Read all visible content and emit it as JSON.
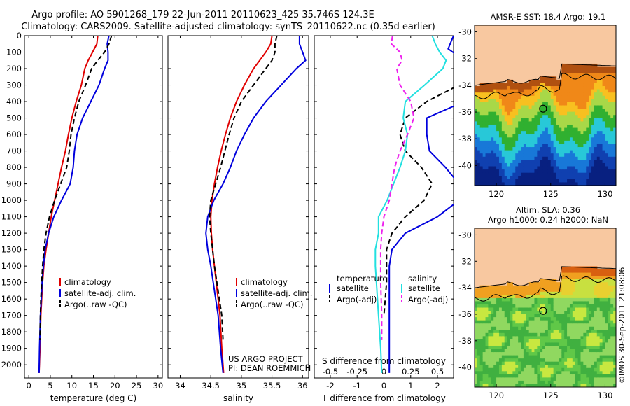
{
  "header": {
    "title_line1": "Argo profile: AO 5901268_179 22-Jun-2011 20110623_425 35.746S 124.3E",
    "title_line2": "Climatology: CARS2009. Satellite-adjusted climatology: synTS_20110622.nc (0.35d earlier)"
  },
  "colors": {
    "climatology": "#e00000",
    "satellite": "#0000dd",
    "argo": "#000000",
    "satellite_s": "#22e0e0",
    "argo_s": "#ee22ee",
    "land": "#f8c8a0"
  },
  "chart_data": [
    {
      "type": "line",
      "panel": "temperature",
      "xlabel": "temperature (deg C)",
      "ylabel": "",
      "xlim": [
        -1,
        31
      ],
      "ylim": [
        2080,
        0
      ],
      "y_reversed": true,
      "xticks": [
        0,
        5,
        10,
        15,
        20,
        25,
        30
      ],
      "yticks": [
        0,
        100,
        200,
        300,
        400,
        500,
        600,
        700,
        800,
        900,
        1000,
        1100,
        1200,
        1300,
        1400,
        1500,
        1600,
        1700,
        1800,
        1900,
        2000
      ],
      "legend": [
        "climatology",
        "satellite-adj. clim.",
        "Argo(..raw -QC)"
      ],
      "series": [
        {
          "name": "climatology",
          "style": "solid",
          "color_key": "climatology",
          "x": [
            16.0,
            15.8,
            14.8,
            13.8,
            13.0,
            12.2,
            11.0,
            10.0,
            9.2,
            8.5,
            7.6,
            6.8,
            6.0,
            5.2,
            4.6,
            4.0,
            3.5,
            3.2,
            3.0,
            2.8,
            2.6,
            2.4
          ],
          "y": [
            0,
            50,
            100,
            150,
            200,
            300,
            400,
            500,
            600,
            700,
            800,
            900,
            1000,
            1100,
            1200,
            1300,
            1400,
            1500,
            1600,
            1700,
            1900,
            2050
          ]
        },
        {
          "name": "satellite-adj. clim.",
          "style": "solid",
          "color_key": "satellite",
          "x": [
            18.6,
            18.2,
            18.4,
            18.4,
            17.6,
            16.3,
            14.4,
            12.5,
            11.2,
            10.6,
            10.3,
            9.6,
            7.6,
            5.8,
            4.6,
            3.8,
            3.4,
            3.1,
            2.9,
            2.7,
            2.5,
            2.4
          ],
          "y": [
            0,
            50,
            100,
            150,
            200,
            300,
            400,
            500,
            600,
            700,
            800,
            900,
            1000,
            1100,
            1200,
            1300,
            1400,
            1500,
            1600,
            1700,
            1900,
            2050
          ]
        },
        {
          "name": "Argo(..raw -QC)",
          "style": "dashed",
          "color_key": "argo",
          "x": [
            19.2,
            18.6,
            17.6,
            16.0,
            14.6,
            13.2,
            11.6,
            10.6,
            9.8,
            9.4,
            8.8,
            7.4,
            6.0,
            4.8,
            4.0,
            3.5,
            3.2,
            3.0,
            2.8,
            2.7,
            2.6
          ],
          "y": [
            0,
            50,
            100,
            150,
            200,
            300,
            400,
            500,
            600,
            700,
            800,
            900,
            1000,
            1100,
            1200,
            1300,
            1400,
            1500,
            1600,
            1700,
            1850
          ]
        }
      ]
    },
    {
      "type": "line",
      "panel": "salinity",
      "xlabel": "salinity",
      "ylabel": "",
      "xlim": [
        33.8,
        36.1
      ],
      "ylim": [
        2080,
        0
      ],
      "y_reversed": true,
      "xticks": [
        34,
        34.5,
        35,
        35.5,
        36
      ],
      "legend": [
        "climatology",
        "satellite-adj. clim.",
        "Argo(..raw -QC)"
      ],
      "series": [
        {
          "name": "climatology",
          "style": "solid",
          "color_key": "climatology",
          "x": [
            35.5,
            35.48,
            35.4,
            35.3,
            35.2,
            35.05,
            34.92,
            34.82,
            34.74,
            34.67,
            34.61,
            34.56,
            34.52,
            34.5,
            34.51,
            34.53,
            34.56,
            34.59,
            34.62,
            34.65,
            34.68,
            34.71
          ],
          "y": [
            0,
            50,
            100,
            150,
            200,
            300,
            400,
            500,
            600,
            700,
            800,
            900,
            1000,
            1100,
            1200,
            1300,
            1400,
            1500,
            1600,
            1700,
            1900,
            2050
          ]
        },
        {
          "name": "satellite-adj. clim.",
          "style": "solid",
          "color_key": "satellite",
          "x": [
            35.95,
            35.95,
            36.0,
            36.05,
            35.9,
            35.65,
            35.4,
            35.2,
            35.05,
            34.92,
            34.82,
            34.7,
            34.55,
            34.45,
            34.42,
            34.45,
            34.5,
            34.54,
            34.58,
            34.62,
            34.66,
            34.7
          ],
          "y": [
            0,
            50,
            100,
            150,
            200,
            300,
            400,
            500,
            600,
            700,
            800,
            900,
            1000,
            1100,
            1200,
            1300,
            1400,
            1500,
            1600,
            1700,
            1900,
            2050
          ]
        },
        {
          "name": "Argo(..raw -QC)",
          "style": "dashed",
          "color_key": "argo",
          "x": [
            35.58,
            35.55,
            35.55,
            35.5,
            35.4,
            35.2,
            35.0,
            34.88,
            34.8,
            34.73,
            34.66,
            34.58,
            34.5,
            34.48,
            34.5,
            34.53,
            34.56,
            34.6,
            34.64,
            34.68,
            34.7
          ],
          "y": [
            0,
            50,
            100,
            150,
            200,
            300,
            400,
            500,
            600,
            700,
            800,
            900,
            1000,
            1100,
            1200,
            1300,
            1400,
            1500,
            1600,
            1700,
            1850
          ]
        }
      ]
    },
    {
      "type": "line",
      "panel": "difference",
      "xlabel": "T difference from climatology",
      "xlabel_top": "S difference from climatology",
      "xlim": [
        -2.6,
        2.6
      ],
      "ylim": [
        2080,
        0
      ],
      "y_reversed": true,
      "xticks": [
        -2,
        -1,
        0,
        1,
        2
      ],
      "xticks_s": [
        -0.5,
        -0.25,
        0,
        0.25,
        0.5
      ],
      "legend_titles": {
        "temperature": "temperature",
        "salinity": "salinity"
      },
      "legend": [
        "satellite",
        "Argo(-adj)",
        "satellite",
        "Argo(-adj)"
      ],
      "series": [
        {
          "name": "temperature satellite",
          "style": "solid",
          "color_key": "satellite",
          "x": [
            2.6,
            2.4,
            3.0,
            3.0,
            3.0,
            3.0,
            1.6,
            1.6,
            1.7,
            2.3,
            2.8,
            2.8,
            2.0,
            0.8,
            0.3,
            0.2,
            0.2,
            0.2,
            0.2,
            0.2,
            0.2
          ],
          "y": [
            0,
            80,
            150,
            200,
            300,
            400,
            500,
            600,
            700,
            800,
            900,
            1000,
            1100,
            1200,
            1300,
            1400,
            1500,
            1600,
            1700,
            1850,
            2050
          ]
        },
        {
          "name": "temperature Argo(-adj)",
          "style": "dashed",
          "color_key": "argo",
          "x": [
            3.0,
            3.0,
            3.0,
            2.8,
            1.6,
            0.8,
            0.6,
            0.8,
            1.4,
            1.8,
            1.5,
            0.8,
            0.3,
            0.1,
            0.1,
            0.0
          ],
          "y": [
            0,
            100,
            200,
            300,
            400,
            500,
            600,
            700,
            800,
            900,
            1000,
            1100,
            1200,
            1300,
            1500,
            1700
          ]
        },
        {
          "name": "salinity satellite",
          "style": "solid",
          "color_key": "satellite_s",
          "x": [
            0.45,
            0.48,
            0.52,
            0.58,
            0.55,
            0.38,
            0.2,
            0.18,
            0.22,
            0.2,
            0.15,
            0.03,
            -0.05,
            -0.05,
            -0.08,
            -0.08,
            -0.07,
            -0.06,
            -0.05,
            -0.03,
            -0.02
          ],
          "y": [
            0,
            50,
            100,
            150,
            200,
            300,
            400,
            500,
            600,
            700,
            800,
            1000,
            1100,
            1200,
            1300,
            1400,
            1500,
            1600,
            1700,
            1900,
            2050
          ]
        },
        {
          "name": "salinity Argo(-adj)",
          "style": "dashed",
          "color_key": "argo_s",
          "x": [
            0.08,
            0.07,
            0.15,
            0.17,
            0.12,
            0.15,
            0.25,
            0.28,
            0.22,
            0.15,
            0.1,
            0.05,
            0.0,
            -0.02,
            -0.03,
            -0.03,
            -0.02,
            -0.02
          ],
          "y": [
            0,
            50,
            100,
            150,
            200,
            300,
            400,
            500,
            600,
            700,
            800,
            1000,
            1100,
            1200,
            1300,
            1500,
            1700,
            1850
          ]
        }
      ]
    },
    {
      "type": "heatmap",
      "panel": "map_sst",
      "title": "AMSR-E SST: 18.4  Argo: 19.1",
      "xlim": [
        118,
        131
      ],
      "ylim": [
        -41.5,
        -29.5
      ],
      "xticks": [
        120,
        125,
        130
      ],
      "yticks": [
        -30,
        -32,
        -34,
        -36,
        -38,
        -40
      ],
      "float_position": {
        "lon": 124.3,
        "lat": -35.746
      }
    },
    {
      "type": "heatmap",
      "panel": "map_sla",
      "title_line1": "Altim. SLA: 0.36",
      "title_line2": "Argo h1000: 0.24  h2000: NaN",
      "xlim": [
        118,
        131
      ],
      "ylim": [
        -41.5,
        -29.5
      ],
      "xticks": [
        120,
        125,
        130
      ],
      "yticks": [
        -30,
        -32,
        -34,
        -36,
        -38,
        -40
      ],
      "float_position": {
        "lon": 124.3,
        "lat": -35.746
      }
    }
  ],
  "panel_text": {
    "legend_climatology": "climatology",
    "legend_satellite_clim": "satellite-adj. clim.",
    "legend_argo": "Argo(..raw -QC)",
    "diff_temp_title": "temperature",
    "diff_sal_title": "salinity",
    "diff_temp_satellite": "satellite",
    "diff_temp_argo": "Argo(-adj)",
    "diff_sal_satellite": "satellite",
    "diff_sal_argo": "Argo(-adj)",
    "project_line1": "US ARGO PROJECT",
    "project_line2": "PI: DEAN ROEMMICH",
    "stamp": "©IMOS 30-Sep-2011 21:08:06"
  }
}
